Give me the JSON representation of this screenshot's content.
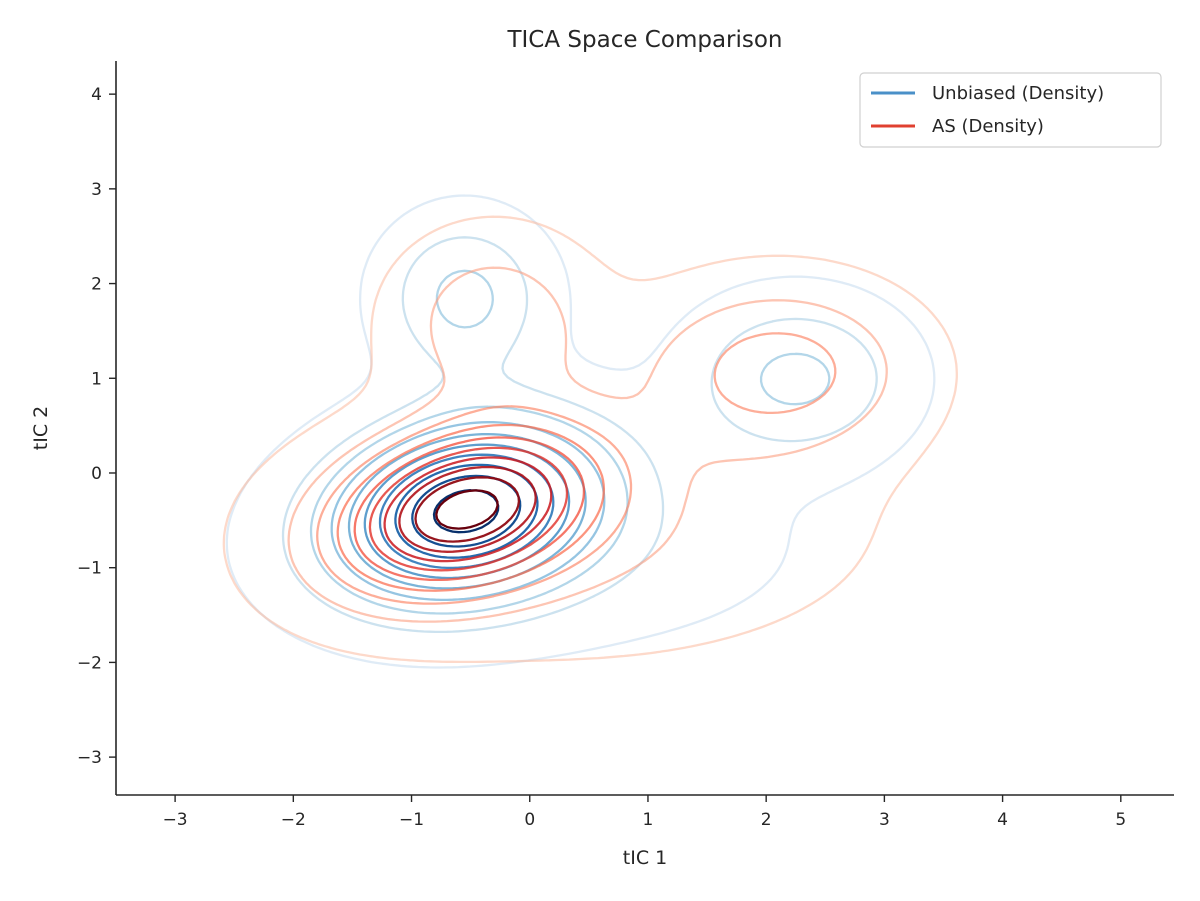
{
  "chart_data": {
    "type": "contour",
    "title": "TICA Space Comparison",
    "xlabel": "tIC 1",
    "ylabel": "tIC 2",
    "xlim": [
      -3.5,
      5.45
    ],
    "ylim": [
      -3.4,
      4.35
    ],
    "xticks": [
      -3,
      -2,
      -1,
      0,
      1,
      2,
      3,
      4,
      5
    ],
    "yticks": [
      -3,
      -2,
      -1,
      0,
      1,
      2,
      3,
      4
    ],
    "xtick_labels": [
      "−3",
      "−2",
      "−1",
      "0",
      "1",
      "2",
      "3",
      "4",
      "5"
    ],
    "ytick_labels": [
      "−3",
      "−2",
      "−1",
      "0",
      "1",
      "2",
      "3",
      "4"
    ],
    "grid": false,
    "legend_position": "top-right",
    "contour_levels": 10,
    "series": [
      {
        "name": "Unbiased (Density)",
        "color": "#4a90c8",
        "colormap": "Blues",
        "components": [
          {
            "weight": 0.62,
            "mean": [
              -0.55,
              -0.38
            ],
            "sd": [
              0.75,
              0.62
            ],
            "rho": 0.2
          },
          {
            "weight": 0.1,
            "mean": [
              -0.55,
              1.85
            ],
            "sd": [
              0.45,
              0.55
            ],
            "rho": 0.0
          },
          {
            "weight": 0.13,
            "mean": [
              2.25,
              1.0
            ],
            "sd": [
              0.6,
              0.55
            ],
            "rho": 0.0
          },
          {
            "weight": 0.15,
            "mean": [
              0.2,
              -0.8
            ],
            "sd": [
              1.4,
              0.7
            ],
            "rho": 0.0
          }
        ]
      },
      {
        "name": "AS (Density)",
        "color": "#e04030",
        "colormap": "Reds",
        "components": [
          {
            "weight": 0.45,
            "mean": [
              -0.55,
              -0.38
            ],
            "sd": [
              0.7,
              0.55
            ],
            "rho": 0.3
          },
          {
            "weight": 0.1,
            "mean": [
              -0.3,
              1.6
            ],
            "sd": [
              0.55,
              0.6
            ],
            "rho": 0.0
          },
          {
            "weight": 0.18,
            "mean": [
              2.1,
              1.1
            ],
            "sd": [
              0.75,
              0.6
            ],
            "rho": 0.0
          },
          {
            "weight": 0.27,
            "mean": [
              0.3,
              -0.6
            ],
            "sd": [
              1.6,
              0.85
            ],
            "rho": 0.0
          }
        ]
      }
    ]
  }
}
